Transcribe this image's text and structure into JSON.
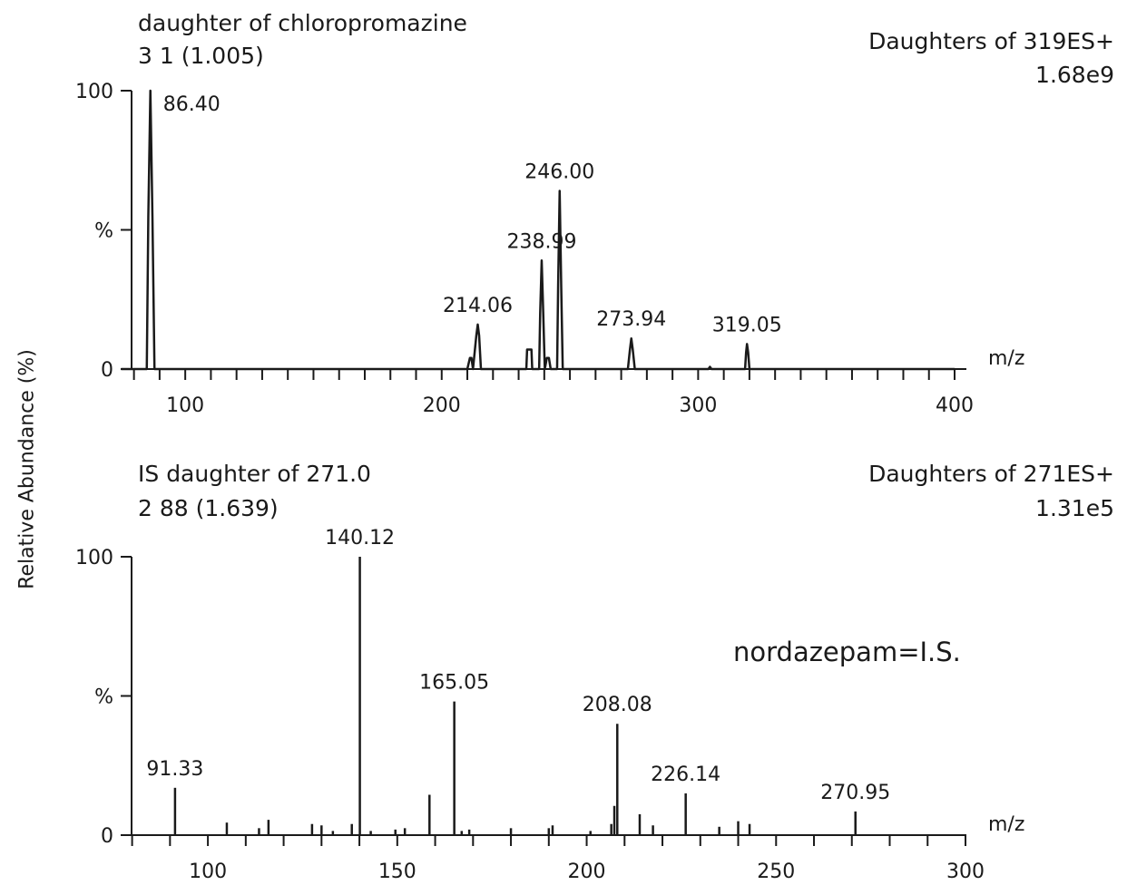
{
  "figure": {
    "y_axis_label": "Relative Abundance (%)"
  },
  "chart_data": [
    {
      "type": "line",
      "title": "daughter of chloropromazine",
      "subtitle": "3 1 (1.005)",
      "scan_label": "Daughters of 319ES+",
      "intensity": "1.68e9",
      "xlabel": "m/z",
      "ylabel": "%",
      "y_ticks": [
        "0",
        "%",
        "100"
      ],
      "xlim": [
        75,
        400
      ],
      "ylim": [
        0,
        100
      ],
      "x_ticks": [
        100,
        200,
        300,
        400
      ],
      "grid": false,
      "series": [
        {
          "x": [
            75,
            85,
            85.6,
            86.4,
            87.2,
            88,
            210,
            211,
            211.6,
            212.2,
            213.5,
            214.06,
            214.6,
            215.3,
            233,
            233.3,
            235,
            235.3,
            238,
            238.4,
            238.99,
            239.6,
            240.2,
            241,
            241.8,
            242.5,
            245,
            245.4,
            246.0,
            246.6,
            247.2,
            272.6,
            273.4,
            273.94,
            274.5,
            275.3,
            304,
            304.6,
            305.2,
            318.3,
            318.7,
            319.05,
            319.5,
            320,
            400
          ],
          "y": [
            0,
            0,
            55,
            100,
            55,
            0,
            0,
            4,
            4,
            0,
            12,
            16,
            12,
            0,
            0,
            7,
            7,
            0,
            0,
            20,
            39,
            20,
            0,
            4,
            4,
            0,
            0,
            30,
            64,
            30,
            0,
            0,
            7,
            11,
            7,
            0,
            0,
            0.8,
            0,
            0,
            6,
            9,
            6,
            0,
            0
          ]
        }
      ],
      "annotations": [
        {
          "label": "86.40",
          "x": 86.4,
          "y": 100
        },
        {
          "label": "214.06",
          "x": 214.06,
          "y": 16
        },
        {
          "label": "238.99",
          "x": 238.99,
          "y": 39
        },
        {
          "label": "246.00",
          "x": 246.0,
          "y": 64
        },
        {
          "label": "273.94",
          "x": 273.94,
          "y": 11
        },
        {
          "label": "319.05",
          "x": 319.05,
          "y": 9
        }
      ]
    },
    {
      "type": "bar",
      "title": "IS daughter of 271.0",
      "subtitle": "2 88 (1.639)",
      "scan_label": "Daughters of 271ES+",
      "intensity": "1.31e5",
      "xlabel": "m/z",
      "ylabel": "%",
      "y_ticks": [
        "0",
        "%",
        "100"
      ],
      "xlim": [
        80,
        300
      ],
      "ylim": [
        0,
        100
      ],
      "x_ticks": [
        100,
        150,
        200,
        250,
        300
      ],
      "grid": false,
      "note": "nordazepam=I.S.",
      "x": [
        91.33,
        105,
        113.5,
        116,
        127.5,
        130,
        133,
        138,
        140.12,
        143,
        149.5,
        152,
        158.5,
        165.05,
        167,
        169,
        180,
        190,
        191,
        201,
        206.5,
        207.3,
        208.08,
        214,
        217.5,
        226.14,
        235,
        240,
        243,
        270.95
      ],
      "y": [
        17,
        4.5,
        2.5,
        5.5,
        4,
        3.5,
        1.5,
        4,
        100,
        1.5,
        2,
        2.5,
        14.5,
        48,
        1.5,
        2,
        2.5,
        2.5,
        3.5,
        1.5,
        4,
        10.5,
        40,
        7.5,
        3.5,
        15,
        3,
        5,
        4,
        8.5
      ],
      "annotations": [
        {
          "label": "91.33",
          "x": 91.33,
          "y": 17
        },
        {
          "label": "140.12",
          "x": 140.12,
          "y": 100
        },
        {
          "label": "165.05",
          "x": 165.05,
          "y": 48
        },
        {
          "label": "208.08",
          "x": 208.08,
          "y": 40
        },
        {
          "label": "226.14",
          "x": 226.14,
          "y": 15
        },
        {
          "label": "270.95",
          "x": 270.95,
          "y": 8.5
        }
      ]
    }
  ]
}
